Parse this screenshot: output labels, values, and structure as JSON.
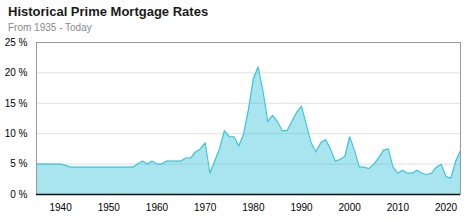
{
  "chart_data": {
    "type": "area",
    "title": "Historical Prime Mortgage Rates",
    "subtitle": "From 1935 - Today",
    "color": "#3EC6DC",
    "grid": true,
    "xlim": [
      1935,
      2023
    ],
    "xticks": [
      1940,
      1950,
      1960,
      1970,
      1980,
      1990,
      2000,
      2010,
      2020
    ],
    "ylim": [
      0,
      25
    ],
    "yticks": [
      {
        "value": 0,
        "label": "0 %"
      },
      {
        "value": 5,
        "label": "5 %"
      },
      {
        "value": 10,
        "label": "10 %"
      },
      {
        "value": 15,
        "label": "15 %"
      },
      {
        "value": 20,
        "label": "20 %"
      },
      {
        "value": 25,
        "label": "25 %"
      }
    ],
    "x": [
      1935,
      1936,
      1937,
      1938,
      1939,
      1940,
      1941,
      1942,
      1943,
      1944,
      1945,
      1946,
      1947,
      1948,
      1949,
      1950,
      1951,
      1952,
      1953,
      1954,
      1955,
      1956,
      1957,
      1958,
      1959,
      1960,
      1961,
      1962,
      1963,
      1964,
      1965,
      1966,
      1967,
      1968,
      1969,
      1970,
      1971,
      1972,
      1973,
      1974,
      1975,
      1976,
      1977,
      1978,
      1979,
      1980,
      1981,
      1982,
      1983,
      1984,
      1985,
      1986,
      1987,
      1988,
      1989,
      1990,
      1991,
      1992,
      1993,
      1994,
      1995,
      1996,
      1997,
      1998,
      1999,
      2000,
      2001,
      2002,
      2003,
      2004,
      2005,
      2006,
      2007,
      2008,
      2009,
      2010,
      2011,
      2012,
      2013,
      2014,
      2015,
      2016,
      2017,
      2018,
      2019,
      2020,
      2021,
      2022,
      2023
    ],
    "values": [
      5.0,
      5.0,
      5.0,
      5.0,
      5.0,
      5.0,
      4.8,
      4.5,
      4.5,
      4.5,
      4.5,
      4.5,
      4.5,
      4.5,
      4.5,
      4.5,
      4.5,
      4.5,
      4.5,
      4.5,
      4.5,
      5.0,
      5.5,
      5.0,
      5.5,
      5.0,
      5.0,
      5.5,
      5.5,
      5.5,
      5.5,
      6.0,
      6.0,
      7.0,
      7.5,
      8.5,
      3.5,
      5.5,
      7.5,
      10.5,
      9.5,
      9.5,
      8.0,
      10.0,
      14.0,
      19.0,
      21.0,
      17.0,
      12.0,
      13.0,
      12.0,
      10.5,
      10.5,
      12.0,
      13.5,
      14.5,
      11.5,
      8.5,
      7.0,
      8.5,
      9.0,
      7.5,
      5.5,
      5.75,
      6.25,
      9.5,
      7.25,
      4.5,
      4.5,
      4.25,
      5.0,
      6.0,
      7.25,
      7.5,
      4.5,
      3.5,
      4.0,
      3.5,
      3.5,
      4.0,
      3.5,
      3.25,
      3.5,
      4.5,
      4.95,
      2.95,
      2.7,
      5.45,
      7.2
    ]
  }
}
